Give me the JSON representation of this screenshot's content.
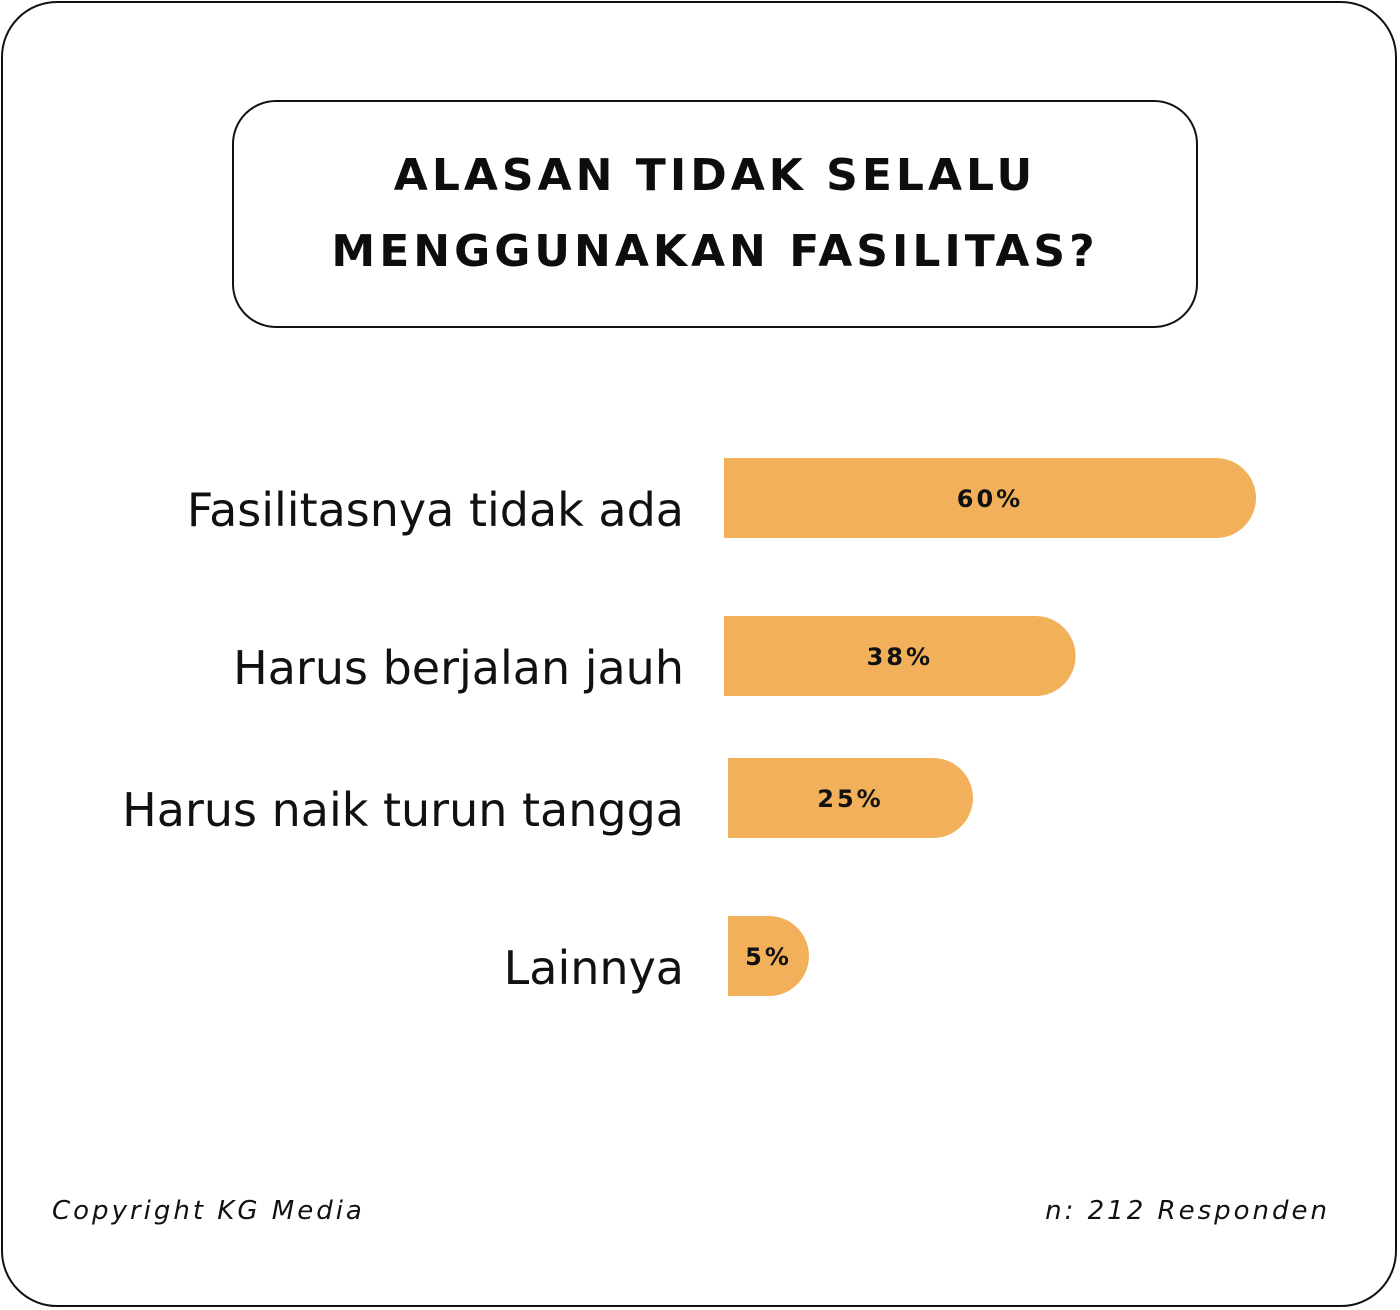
{
  "title": {
    "line1": "ALASAN TIDAK SELALU",
    "line2": "MENGGUNAKAN FASILITAS?"
  },
  "footer": {
    "copyright": "Copyright KG Media",
    "sample": "n: 212 Responden"
  },
  "colors": {
    "bar": "#f2b05a",
    "text": "#111111",
    "border": "#111111"
  },
  "chart_data": {
    "type": "bar",
    "orientation": "horizontal",
    "categories": [
      "Fasilitasnya tidak ada",
      "Harus berjalan jauh",
      "Harus naik turun tangga",
      "Lainnya"
    ],
    "values": [
      60,
      38,
      25,
      5
    ],
    "value_labels": [
      "60%",
      "38%",
      "25%",
      "5%"
    ],
    "unit": "%",
    "grid": false,
    "legend": "none"
  }
}
